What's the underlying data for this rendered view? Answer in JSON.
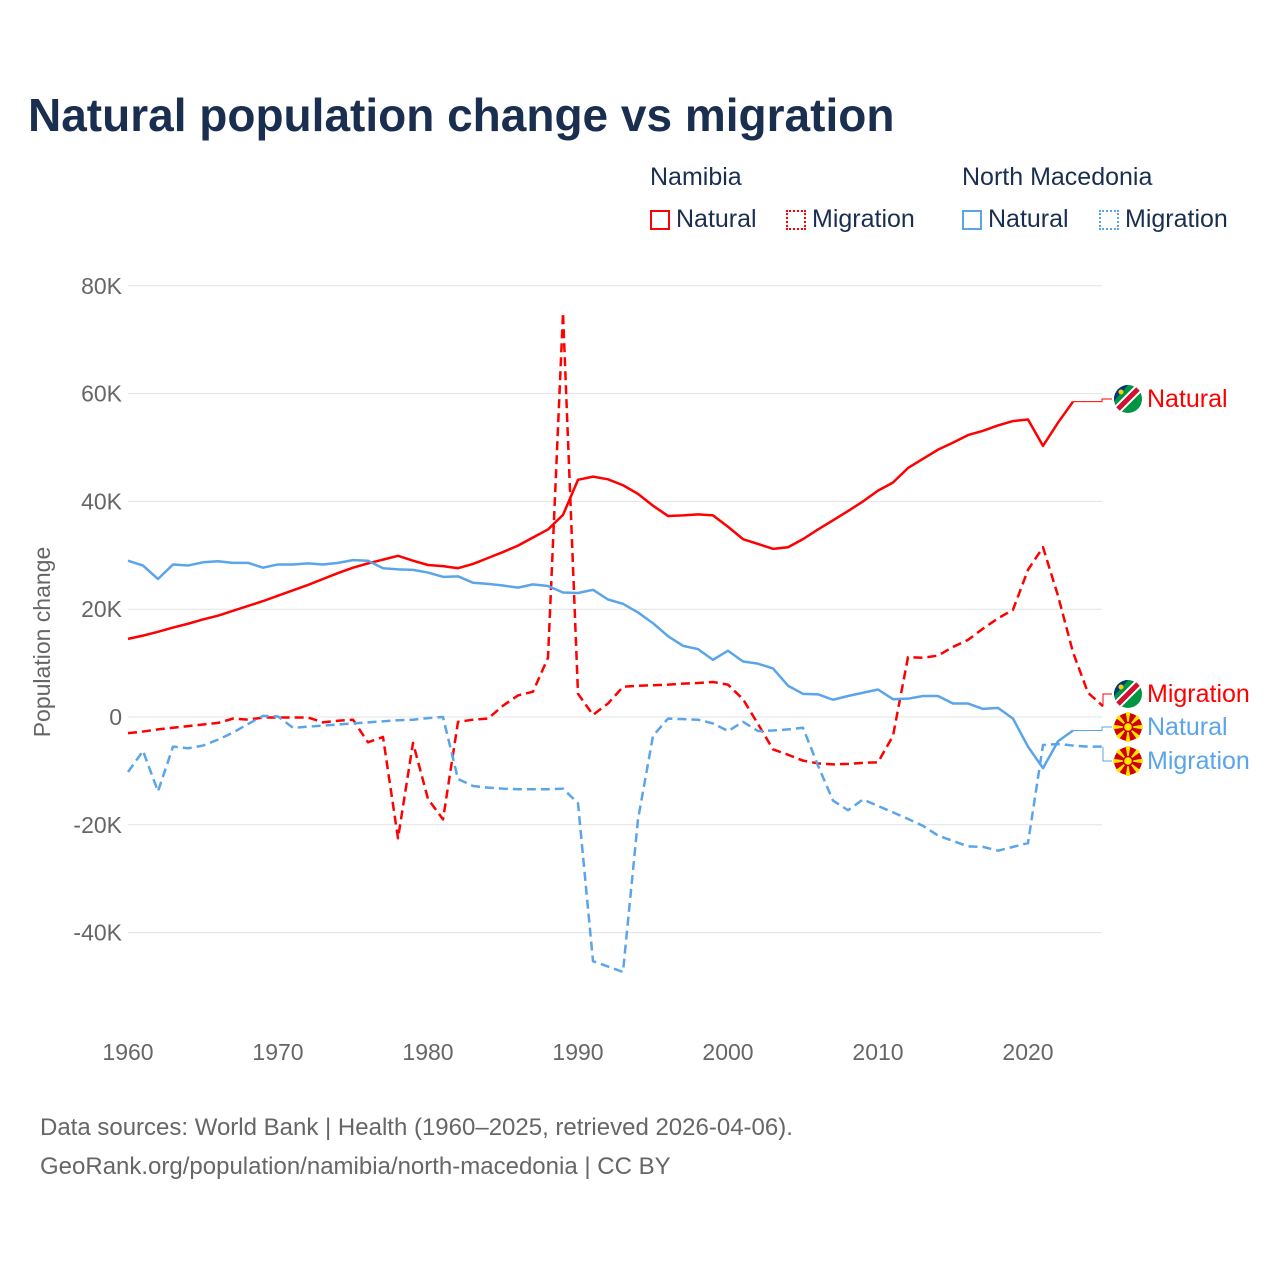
{
  "title": "Natural population change vs migration",
  "legend": {
    "groups": [
      {
        "name": "Namibia",
        "items": [
          "Natural",
          "Migration"
        ],
        "color": "#ff0000"
      },
      {
        "name": "North Macedonia",
        "items": [
          "Natural",
          "Migration"
        ],
        "color": "#5aa5ea"
      }
    ]
  },
  "source_lines": [
    "Data sources: World Bank | Health (1960–2025, retrieved 2026-04-06).",
    "GeoRank.org/population/namibia/north-macedonia | CC BY"
  ],
  "chart_data": {
    "type": "line",
    "title": "Natural population change vs migration",
    "xlabel": "",
    "ylabel": "Population change",
    "xlim": [
      1960,
      2025
    ],
    "ylim": [
      -50000,
      80000
    ],
    "xticks": [
      1960,
      1970,
      1980,
      1990,
      2000,
      2010,
      2020
    ],
    "yticks": [
      {
        "v": 80000,
        "t": "80K"
      },
      {
        "v": 60000,
        "t": "60K"
      },
      {
        "v": 40000,
        "t": "40K"
      },
      {
        "v": 20000,
        "t": "20K"
      },
      {
        "v": 0,
        "t": "0"
      },
      {
        "v": -20000,
        "t": "-20K"
      },
      {
        "v": -40000,
        "t": "-40K"
      }
    ],
    "grid": true,
    "legend_position": "top-right",
    "series": [
      {
        "name": "Namibia Natural",
        "label": "Natural",
        "color": "#ff0000",
        "dash": false,
        "start": 1960,
        "values": [
          14.5,
          15.1,
          15.8,
          16.6,
          17.3,
          18.1,
          18.8,
          19.7,
          20.6,
          21.5,
          22.5,
          23.5,
          24.5,
          25.6,
          26.7,
          27.7,
          28.5,
          29.2,
          29.9,
          29.0,
          28.2,
          28.0,
          27.6,
          28.4,
          29.5,
          30.6,
          31.8,
          33.3,
          34.8,
          37.5,
          44.0,
          44.6,
          44.1,
          43.0,
          41.4,
          39.2,
          37.3,
          37.4,
          37.6,
          37.4,
          35.3,
          33.0,
          32.1,
          31.2,
          31.5,
          33.0,
          34.8,
          36.5,
          38.2,
          40.0,
          42.0,
          43.5,
          46.2,
          47.9,
          49.6,
          50.9,
          52.3,
          53.1,
          54.1,
          54.9,
          55.2,
          50.3,
          54.6,
          58.5
        ]
      },
      {
        "name": "Namibia Migration",
        "label": "Migration",
        "color": "#ff0000",
        "dash": true,
        "start": 1960,
        "values": [
          -3.0,
          -2.7,
          -2.3,
          -2.0,
          -1.7,
          -1.4,
          -1.1,
          -0.3,
          -0.5,
          -0.1,
          -0.1,
          -0.1,
          -0.1,
          -1.0,
          -0.7,
          -0.5,
          -4.7,
          -3.7,
          -22.5,
          -4.8,
          -15.2,
          -19.0,
          -0.9,
          -0.5,
          -0.3,
          2.1,
          4.0,
          4.7,
          11.0,
          75.0,
          4.3,
          0.4,
          2.5,
          5.6,
          5.8,
          5.9,
          6.0,
          6.2,
          6.3,
          6.5,
          6.0,
          3.3,
          -1.3,
          -6.0,
          -7.0,
          -8.1,
          -8.6,
          -8.8,
          -8.7,
          -8.5,
          -8.4,
          -3.5,
          11.1,
          11.0,
          11.4,
          13.0,
          14.3,
          16.4,
          18.3,
          19.9,
          27.3,
          31.5,
          22.5,
          12.0,
          4.5,
          2.0
        ]
      },
      {
        "name": "North Macedonia Natural",
        "label": "Natural",
        "color": "#5aa5ea",
        "dash": false,
        "start": 1960,
        "values": [
          29.0,
          28.1,
          25.6,
          28.3,
          28.1,
          28.7,
          28.9,
          28.6,
          28.6,
          27.7,
          28.3,
          28.3,
          28.5,
          28.3,
          28.6,
          29.1,
          29.0,
          27.6,
          27.4,
          27.3,
          26.8,
          26.0,
          26.1,
          24.9,
          24.7,
          24.4,
          24.0,
          24.6,
          24.3,
          23.1,
          23.0,
          23.6,
          21.8,
          21.0,
          19.4,
          17.4,
          15.0,
          13.2,
          12.6,
          10.6,
          12.3,
          10.3,
          9.9,
          9.0,
          5.8,
          4.3,
          4.2,
          3.2,
          3.9,
          4.5,
          5.1,
          3.3,
          3.4,
          3.9,
          3.9,
          2.5,
          2.5,
          1.5,
          1.7,
          -0.3,
          -5.5,
          -9.5,
          -4.5,
          -2.5
        ]
      },
      {
        "name": "North Macedonia Migration",
        "label": "Migration",
        "color": "#5aa5ea",
        "dash": true,
        "start": 1960,
        "values": [
          -10.2,
          -6.3,
          -13.8,
          -5.5,
          -5.8,
          -5.3,
          -4.2,
          -2.9,
          -1.3,
          0.2,
          0.1,
          -2.0,
          -1.8,
          -1.6,
          -1.4,
          -1.2,
          -1.0,
          -0.8,
          -0.6,
          -0.5,
          -0.2,
          0.0,
          -11.5,
          -12.8,
          -13.1,
          -13.3,
          -13.4,
          -13.4,
          -13.4,
          -13.3,
          -16.0,
          -45.3,
          -46.3,
          -47.3,
          -19.0,
          -3.5,
          -0.3,
          -0.4,
          -0.5,
          -1.2,
          -2.6,
          -0.9,
          -2.6,
          -2.5,
          -2.3,
          -2.0,
          -9.0,
          -15.5,
          -17.3,
          -15.3,
          -16.5,
          -17.7,
          -18.9,
          -20.2,
          -22.0,
          -23.0,
          -24.0,
          -24.1,
          -24.8,
          -24.1,
          -23.4,
          -5.2,
          -5.0,
          -5.3,
          -5.5,
          -5.5
        ]
      }
    ],
    "value_unit": "thousands"
  }
}
